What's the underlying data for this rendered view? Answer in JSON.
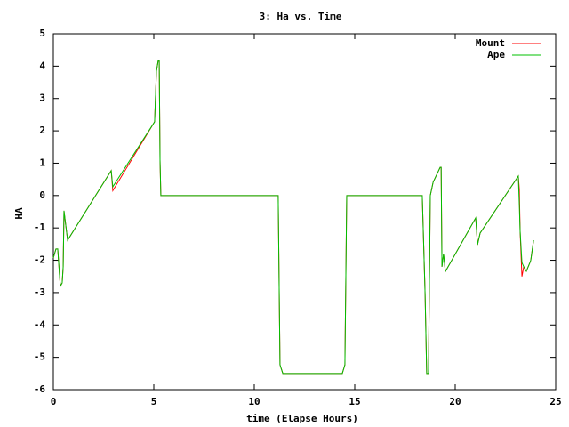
{
  "chart_data": {
    "type": "line",
    "title": "3: Ha vs. Time",
    "x_label": "time (Elapse Hours)",
    "y_label": "HA",
    "xlim": [
      0,
      25
    ],
    "ylim": [
      -6,
      5
    ],
    "xticks": [
      0,
      5,
      10,
      15,
      20,
      25
    ],
    "yticks": [
      -6,
      -5,
      -4,
      -3,
      -2,
      -1,
      0,
      1,
      2,
      3,
      4,
      5
    ],
    "legend": "top-right",
    "series": [
      {
        "name": "Mount",
        "color": "#ff0000",
        "x": [
          0,
          0.13,
          0.22,
          0.31,
          0.35,
          0.44,
          0.49,
          0.53,
          0.71,
          2.88,
          2.96,
          5.04,
          5.13,
          5.22,
          5.27,
          5.31,
          5.35,
          11.19,
          11.28,
          11.42,
          14.38,
          14.51,
          14.6,
          18.36,
          18.5,
          18.58,
          18.67,
          18.76,
          18.9,
          19.25,
          19.3,
          19.34,
          19.42,
          19.51,
          21.02,
          21.11,
          21.24,
          23.14,
          23.19,
          23.23,
          23.32,
          23.41,
          23.54,
          23.72,
          23.76,
          23.9
        ],
        "values": [
          -1.93,
          -1.65,
          -1.65,
          -2.48,
          -2.8,
          -2.7,
          -2.2,
          -0.47,
          -1.38,
          0.77,
          0.15,
          2.28,
          3.84,
          4.17,
          4.17,
          1.1,
          0,
          0,
          -5.23,
          -5.5,
          -5.5,
          -5.23,
          0,
          0,
          -3.03,
          -5.5,
          -5.5,
          0,
          0.41,
          0.87,
          0.87,
          -2.2,
          -1.8,
          -2.35,
          -0.69,
          -1.52,
          -1.16,
          0.6,
          0.2,
          -1.1,
          -2.5,
          -2.2,
          -2.34,
          -2.07,
          -2,
          -1.38
        ]
      },
      {
        "name": "Ape",
        "color": "#00c000",
        "x": [
          0,
          0.13,
          0.22,
          0.31,
          0.35,
          0.44,
          0.49,
          0.53,
          0.71,
          2.88,
          2.96,
          5.04,
          5.13,
          5.22,
          5.27,
          5.31,
          5.35,
          11.19,
          11.28,
          11.42,
          14.38,
          14.51,
          14.6,
          18.36,
          18.5,
          18.58,
          18.67,
          18.76,
          18.9,
          19.25,
          19.3,
          19.34,
          19.42,
          19.51,
          21.02,
          21.11,
          21.24,
          23.14,
          23.19,
          23.23,
          23.32,
          23.41,
          23.54,
          23.72,
          23.76,
          23.9
        ],
        "values": [
          -1.93,
          -1.65,
          -1.65,
          -2.48,
          -2.8,
          -2.7,
          -2.2,
          -0.47,
          -1.38,
          0.77,
          0.27,
          2.28,
          3.84,
          4.17,
          4.17,
          1.1,
          0,
          0,
          -5.23,
          -5.5,
          -5.5,
          -5.23,
          0,
          0,
          -3.03,
          -5.5,
          -5.5,
          0,
          0.41,
          0.87,
          0.87,
          -2.2,
          -1.8,
          -2.35,
          -0.69,
          -1.52,
          -1.16,
          0.6,
          -0.28,
          -1.1,
          -2.07,
          -2.2,
          -2.34,
          -2.07,
          -2,
          -1.38
        ]
      }
    ]
  }
}
